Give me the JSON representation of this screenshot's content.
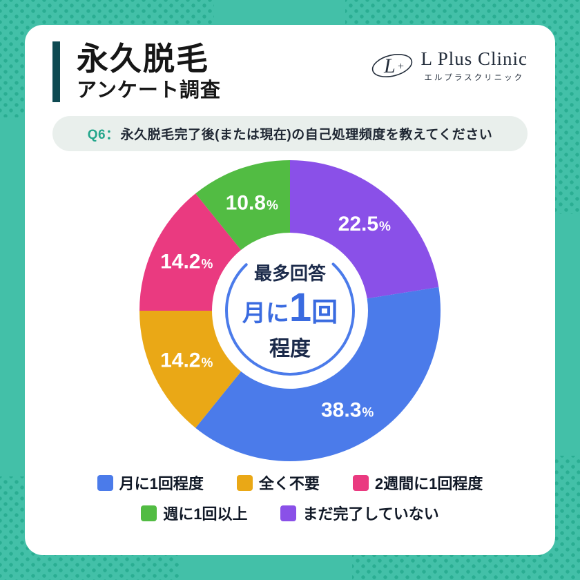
{
  "header": {
    "title_line1": "永久脱毛",
    "title_line2": "アンケート調査"
  },
  "logo": {
    "name": "L Plus Clinic",
    "subtitle": "エルプラスクリニック",
    "monogram_letter": "L",
    "monogram_plus": "+"
  },
  "question": {
    "prefix": "Q6：",
    "text": "永久脱毛完了後(または現在)の自己処理頻度を教えてください"
  },
  "chart_data": {
    "type": "pie",
    "variant": "donut",
    "title": "永久脱毛完了後(または現在)の自己処理頻度",
    "unit": "%",
    "total": 100,
    "start_angle_deg": 0,
    "direction": "clockwise",
    "segments": [
      {
        "label": "まだ完了していない",
        "value": 22.5,
        "color": "#8a50e8"
      },
      {
        "label": "月に1回程度",
        "value": 38.3,
        "color": "#4b7bea"
      },
      {
        "label": "全く不要",
        "value": 14.2,
        "color": "#eaa816"
      },
      {
        "label": "2週間に1回程度",
        "value": 14.2,
        "color": "#ea3a80"
      },
      {
        "label": "週に1回以上",
        "value": 10.8,
        "color": "#52bc43"
      }
    ],
    "center_text": {
      "top": "最多回答",
      "middle_prefix": "月に",
      "middle_number": "1",
      "middle_suffix": "回",
      "bottom": "程度"
    }
  },
  "legend": {
    "rows": [
      [
        {
          "label": "月に1回程度",
          "color": "#4b7bea"
        },
        {
          "label": "全く不要",
          "color": "#eaa816"
        },
        {
          "label": "2週間に1回程度",
          "color": "#ea3a80"
        }
      ],
      [
        {
          "label": "週に1回以上",
          "color": "#52bc43"
        },
        {
          "label": "まだ完了していない",
          "color": "#8a50e8"
        }
      ]
    ]
  },
  "colors": {
    "background": "#43c0a8",
    "dots": "#2aad92",
    "card": "#ffffff",
    "title_bar": "#0e4a52",
    "question_bg": "#e9efec",
    "question_accent": "#23a68c",
    "center_navy": "#1b2a4a",
    "center_blue": "#3a6be0",
    "arc_blue": "#4b7bea"
  }
}
